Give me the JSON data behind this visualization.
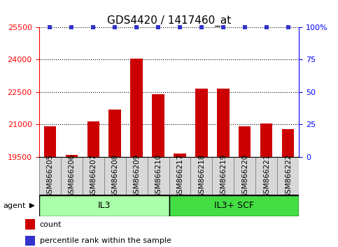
{
  "title": "GDS4420 / 1417460_at",
  "samples": [
    "GSM866205",
    "GSM866206",
    "GSM866207",
    "GSM866208",
    "GSM866209",
    "GSM866210",
    "GSM866217",
    "GSM866218",
    "GSM866219",
    "GSM866220",
    "GSM866221",
    "GSM866222"
  ],
  "counts": [
    20900,
    19600,
    21150,
    21700,
    24050,
    22400,
    19650,
    22650,
    22650,
    20900,
    21050,
    20800
  ],
  "percentile_ranks": [
    100,
    100,
    100,
    100,
    100,
    100,
    100,
    100,
    100,
    100,
    100,
    100
  ],
  "groups": [
    {
      "label": "IL3",
      "start": 0,
      "end": 6,
      "color": "#aaffaa"
    },
    {
      "label": "IL3+ SCF",
      "start": 6,
      "end": 12,
      "color": "#44dd44"
    }
  ],
  "ylim_left": [
    19500,
    25500
  ],
  "ylim_right": [
    0,
    100
  ],
  "yticks_left": [
    19500,
    21000,
    22500,
    24000,
    25500
  ],
  "yticks_right": [
    0,
    25,
    50,
    75,
    100
  ],
  "bar_color": "#cc0000",
  "dot_color": "#3333cc",
  "bar_width": 0.55,
  "agent_label": "agent",
  "legend_items": [
    {
      "color": "#cc0000",
      "label": "count"
    },
    {
      "color": "#3333cc",
      "label": "percentile rank within the sample"
    }
  ],
  "group_label_fontsize": 9,
  "title_fontsize": 11,
  "tick_fontsize": 8,
  "sample_fontsize": 7.5
}
